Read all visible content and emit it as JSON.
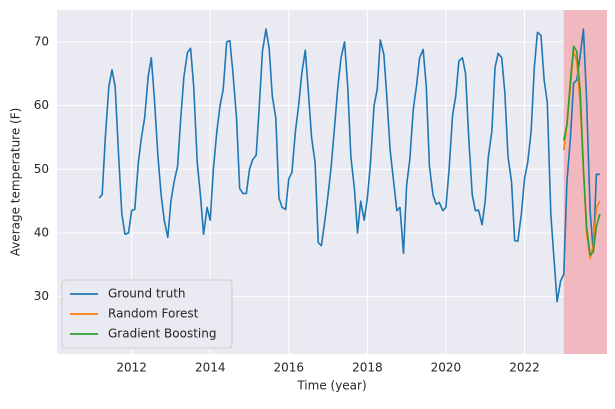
{
  "chart_data": {
    "type": "line",
    "xlabel": "Time (year)",
    "ylabel": "Average temperature (F)",
    "xlim": [
      2010.1,
      2024.1
    ],
    "ylim": [
      21,
      75
    ],
    "xticks": [
      2012,
      2014,
      2016,
      2018,
      2020,
      2022
    ],
    "yticks": [
      30,
      40,
      50,
      60,
      70
    ],
    "grid": true,
    "legend": "lower left",
    "background": "#eaeaf2",
    "shade": {
      "xlim": [
        2023.0,
        2024.1
      ],
      "color": "#f2b8c0"
    },
    "series": [
      {
        "name": "Ground truth",
        "color": "#1f77b4",
        "x": [
          2011.17,
          2011.25,
          2011.33,
          2011.42,
          2011.5,
          2011.58,
          2011.67,
          2011.75,
          2011.83,
          2011.92,
          2012.0,
          2012.08,
          2012.17,
          2012.25,
          2012.33,
          2012.42,
          2012.5,
          2012.58,
          2012.67,
          2012.75,
          2012.83,
          2012.92,
          2013.0,
          2013.08,
          2013.17,
          2013.25,
          2013.33,
          2013.42,
          2013.5,
          2013.58,
          2013.67,
          2013.75,
          2013.83,
          2013.92,
          2014.0,
          2014.08,
          2014.17,
          2014.25,
          2014.33,
          2014.42,
          2014.5,
          2014.58,
          2014.67,
          2014.75,
          2014.83,
          2014.92,
          2015.0,
          2015.08,
          2015.17,
          2015.25,
          2015.33,
          2015.42,
          2015.5,
          2015.58,
          2015.67,
          2015.75,
          2015.83,
          2015.92,
          2016.0,
          2016.08,
          2016.17,
          2016.25,
          2016.33,
          2016.42,
          2016.5,
          2016.58,
          2016.67,
          2016.75,
          2016.83,
          2016.92,
          2017.0,
          2017.08,
          2017.17,
          2017.25,
          2017.33,
          2017.42,
          2017.5,
          2017.58,
          2017.67,
          2017.75,
          2017.83,
          2017.92,
          2018.0,
          2018.08,
          2018.17,
          2018.25,
          2018.33,
          2018.42,
          2018.5,
          2018.58,
          2018.67,
          2018.75,
          2018.83,
          2018.92,
          2019.0,
          2019.08,
          2019.17,
          2019.25,
          2019.33,
          2019.42,
          2019.5,
          2019.58,
          2019.67,
          2019.75,
          2019.83,
          2019.92,
          2020.0,
          2020.08,
          2020.17,
          2020.25,
          2020.33,
          2020.42,
          2020.5,
          2020.58,
          2020.67,
          2020.75,
          2020.83,
          2020.92,
          2021.0,
          2021.08,
          2021.17,
          2021.25,
          2021.33,
          2021.42,
          2021.5,
          2021.58,
          2021.67,
          2021.75,
          2021.83,
          2021.92,
          2022.0,
          2022.08,
          2022.17,
          2022.25,
          2022.33,
          2022.42,
          2022.5,
          2022.58,
          2022.67,
          2022.75,
          2022.83,
          2022.92,
          2023.0,
          2023.08,
          2023.17,
          2023.25,
          2023.33,
          2023.42,
          2023.5,
          2023.58,
          2023.67,
          2023.75,
          2023.83,
          2023.92
        ],
        "values": [
          45.5,
          46,
          55,
          63,
          65.6,
          63,
          52,
          43,
          39.8,
          40,
          43.5,
          43.7,
          51,
          55,
          58,
          64.5,
          67.5,
          61,
          52,
          46,
          42,
          39.3,
          45,
          48,
          50.5,
          58,
          64.5,
          68.3,
          69,
          63,
          51,
          46,
          39.8,
          44,
          42,
          50,
          56,
          60,
          62.5,
          70,
          70.2,
          65,
          58,
          47,
          46.2,
          46.2,
          50,
          51.5,
          52.2,
          60,
          68.5,
          72,
          69,
          61.5,
          58,
          45.5,
          44,
          43.7,
          48.5,
          49.5,
          56,
          60,
          65,
          68.7,
          62,
          55,
          51,
          38.5,
          38,
          42,
          46,
          50.5,
          57,
          63,
          67.5,
          70,
          63,
          52,
          47,
          40,
          45,
          42,
          45.5,
          51,
          60,
          62.5,
          70.3,
          68,
          61,
          53,
          48,
          43.5,
          44,
          36.8,
          47.5,
          51.5,
          59.5,
          63,
          67.5,
          68.8,
          63,
          50.5,
          46,
          44.5,
          44.8,
          43.5,
          44,
          50,
          58.5,
          61.5,
          67,
          67.5,
          65,
          55,
          46,
          43.5,
          43.6,
          41.3,
          45,
          52,
          56,
          66,
          68.2,
          67.5,
          62,
          52,
          48,
          38.8,
          38.7,
          43,
          48.5,
          51,
          56,
          66,
          71.5,
          71,
          64,
          60.5,
          43,
          36,
          29.2,
          32.5,
          33.5,
          48,
          55,
          63.5,
          64,
          68,
          72,
          61,
          43.5,
          37,
          49.2,
          49.2
        ]
      },
      {
        "name": "Random Forest",
        "color": "#ff7f0e",
        "x": [
          2023.0,
          2023.08,
          2023.17,
          2023.25,
          2023.33,
          2023.42,
          2023.5,
          2023.58,
          2023.67,
          2023.75,
          2023.83,
          2023.92
        ],
        "values": [
          53,
          57,
          63,
          68.5,
          67,
          60,
          50,
          40,
          36,
          38,
          44,
          45
        ]
      },
      {
        "name": "Gradient Boosting",
        "color": "#2ca02c",
        "x": [
          2023.0,
          2023.08,
          2023.17,
          2023.25,
          2023.33,
          2023.42,
          2023.5,
          2023.58,
          2023.67,
          2023.75,
          2023.83,
          2023.92
        ],
        "values": [
          54.5,
          57,
          64,
          69.3,
          68.5,
          62,
          50,
          41,
          36.5,
          37,
          41,
          43
        ]
      }
    ]
  }
}
